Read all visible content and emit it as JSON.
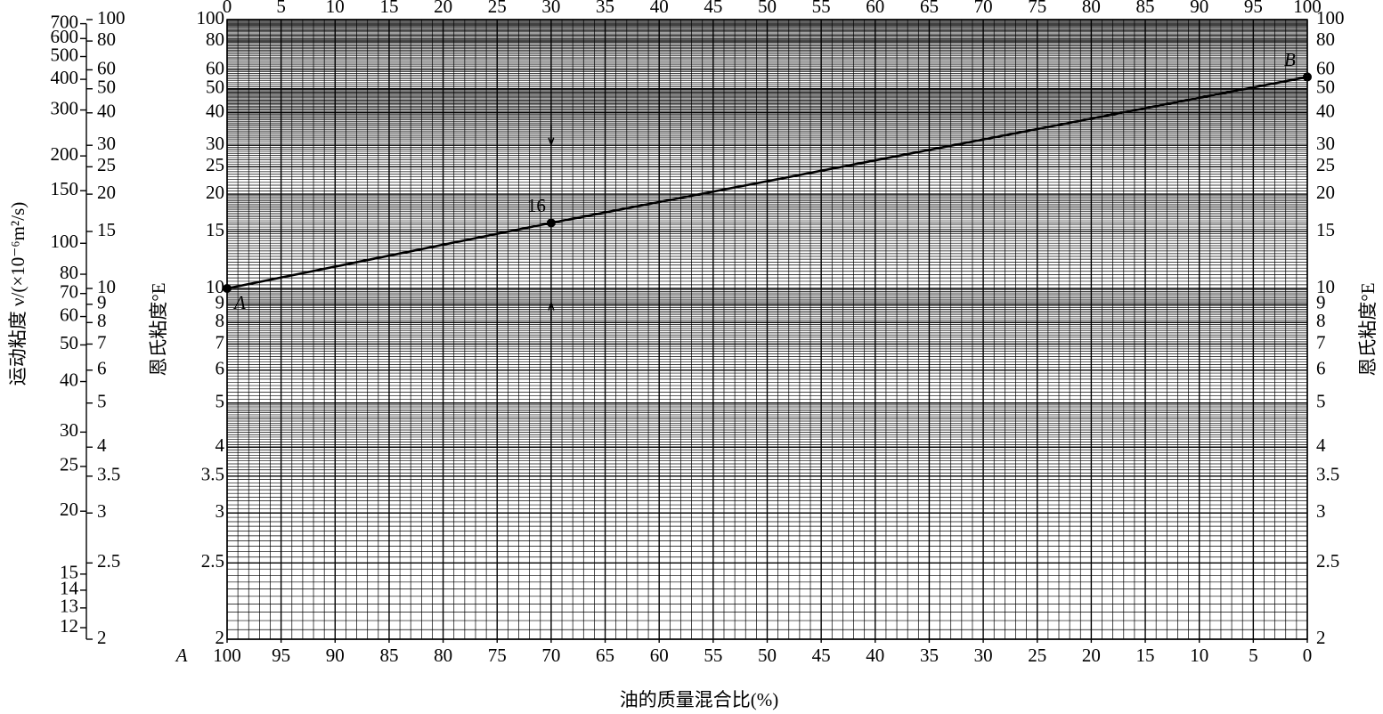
{
  "chart_data": {
    "type": "line",
    "xlabel": "油的质量混合比(%)",
    "ylabel": "恩氏粘度°E",
    "nu_label": "运动粘度 ν/(×10⁻⁶m²/s)",
    "x": [
      0,
      30,
      100
    ],
    "values": [
      10,
      16,
      56
    ],
    "color": "#000000",
    "xlim": [
      0,
      100
    ],
    "xticks": [
      0,
      5,
      10,
      15,
      20,
      25,
      30,
      35,
      40,
      45,
      50,
      55,
      60,
      65,
      70,
      75,
      80,
      85,
      90,
      95,
      100
    ],
    "x2lim": [
      100,
      0
    ],
    "x2ticks": [
      100,
      95,
      90,
      85,
      80,
      75,
      70,
      65,
      60,
      55,
      50,
      45,
      40,
      35,
      30,
      25,
      20,
      15,
      10,
      5,
      0
    ],
    "yscale": "engler",
    "ylim": [
      2,
      100
    ],
    "yticks": [
      100,
      80,
      60,
      50,
      40,
      30,
      25,
      20,
      15,
      10,
      9,
      8,
      7,
      6,
      5,
      4,
      3.5,
      3,
      2.5,
      2
    ],
    "nu_ticks": [
      700,
      600,
      500,
      400,
      300,
      200,
      150,
      100,
      80,
      70,
      60,
      50,
      40,
      30,
      25,
      20,
      15,
      14,
      13,
      12
    ],
    "grid": true,
    "annotations": {
      "mid": "16",
      "a": "A",
      "b": "B",
      "bottom_a": "A"
    }
  }
}
